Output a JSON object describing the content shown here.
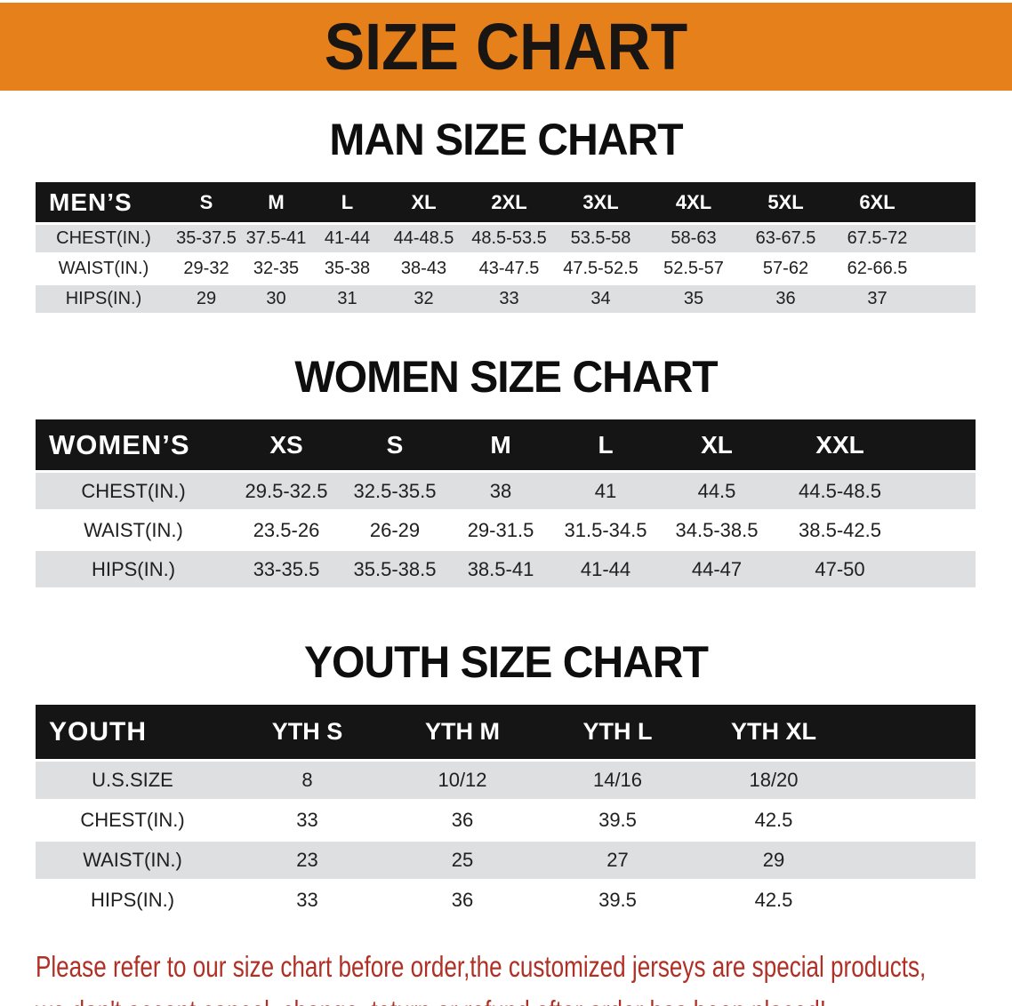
{
  "banner": {
    "title": "SIZE CHART"
  },
  "sections": [
    {
      "title": "MAN SIZE CHART",
      "corner_label": "MEN’S",
      "columns": [
        "S",
        "M",
        "L",
        "XL",
        "2XL",
        "3XL",
        "4XL",
        "5XL",
        "6XL"
      ],
      "rows": [
        {
          "label": "CHEST(IN.)",
          "values": [
            "35-37.5",
            "37.5-41",
            "41-44",
            "44-48.5",
            "48.5-53.5",
            "53.5-58",
            "58-63",
            "63-67.5",
            "67.5-72"
          ]
        },
        {
          "label": "WAIST(IN.)",
          "values": [
            "29-32",
            "32-35",
            "35-38",
            "38-43",
            "43-47.5",
            "47.5-52.5",
            "52.5-57",
            "57-62",
            "62-66.5"
          ]
        },
        {
          "label": "HIPS(IN.)",
          "values": [
            "29",
            "30",
            "31",
            "32",
            "33",
            "34",
            "35",
            "36",
            "37"
          ]
        }
      ]
    },
    {
      "title": "WOMEN SIZE CHART",
      "corner_label": "WOMEN’S",
      "columns": [
        "XS",
        "S",
        "M",
        "L",
        "XL",
        "XXL"
      ],
      "rows": [
        {
          "label": "CHEST(IN.)",
          "values": [
            "29.5-32.5",
            "32.5-35.5",
            "38",
            "41",
            "44.5",
            "44.5-48.5"
          ]
        },
        {
          "label": "WAIST(IN.)",
          "values": [
            "23.5-26",
            "26-29",
            "29-31.5",
            "31.5-34.5",
            "34.5-38.5",
            "38.5-42.5"
          ]
        },
        {
          "label": "HIPS(IN.)",
          "values": [
            "33-35.5",
            "35.5-38.5",
            "38.5-41",
            "41-44",
            "44-47",
            "47-50"
          ]
        }
      ]
    },
    {
      "title": "YOUTH SIZE CHART",
      "corner_label": "YOUTH",
      "columns": [
        "YTH S",
        "YTH M",
        "YTH L",
        "YTH XL"
      ],
      "rows": [
        {
          "label": "U.S.SIZE",
          "values": [
            "8",
            "10/12",
            "14/16",
            "18/20"
          ]
        },
        {
          "label": "CHEST(IN.)",
          "values": [
            "33",
            "36",
            "39.5",
            "42.5"
          ]
        },
        {
          "label": "WAIST(IN.)",
          "values": [
            "23",
            "25",
            "27",
            "29"
          ]
        },
        {
          "label": "HIPS(IN.)",
          "values": [
            "33",
            "36",
            "39.5",
            "42.5"
          ]
        }
      ]
    }
  ],
  "footer": {
    "line1": "Please refer to our size chart before order,the customized jerseys are special products,",
    "line2": "we don't accept cancel, change, teturn or refund after order has been placed!"
  },
  "colors": {
    "banner_orange": "#E6801A",
    "header_band_black": "#151515",
    "row_stripe_gray": "#DDDFE0",
    "notice_red": "#B03026"
  }
}
